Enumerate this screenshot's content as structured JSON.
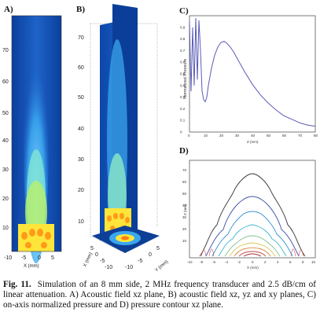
{
  "panels": {
    "a": {
      "label": "A)",
      "y_ticks": [
        "70",
        "60",
        "50",
        "40",
        "30",
        "20",
        "10"
      ],
      "x_ticks": [
        "-10",
        "-5",
        "0",
        "5"
      ],
      "xlabel": "X (mm)"
    },
    "b": {
      "label": "B)",
      "z_ticks": [
        "70",
        "60",
        "50",
        "40",
        "30",
        "20",
        "10"
      ],
      "zlabel": "Z (mm)",
      "x_ticks": [
        "5",
        "0",
        "-5",
        "-10"
      ],
      "y_ticks": [
        "-10",
        "-5",
        "0",
        "5"
      ],
      "xlabel": "X (mm)",
      "ylabel": "Y (mm)"
    },
    "c": {
      "label": "C)",
      "ylabel": "Normalized Pressure",
      "xlabel": "Z (mm)",
      "y_ticks": [
        "0.9",
        "0.8",
        "0.7",
        "0.6",
        "0.5",
        "0.4",
        "0.3",
        "0.2",
        "0.1",
        "0"
      ],
      "x_ticks": [
        "0",
        "10",
        "20",
        "30",
        "40",
        "50",
        "60",
        "70",
        "80"
      ]
    },
    "d": {
      "label": "D)",
      "ylabel": "Z (mm)",
      "xlabel": "X (mm)",
      "y_ticks": [
        "70",
        "60",
        "50",
        "40",
        "30",
        "20",
        "10"
      ],
      "x_ticks": [
        "-10",
        "-8",
        "-6",
        "-4",
        "-2",
        "0",
        "2",
        "4",
        "6",
        "8",
        "10"
      ]
    }
  },
  "caption": {
    "fig": "Fig. 11.",
    "text": "Simulation of an 8 mm side, 2 MHz frequency transducer and 2.5 dB/cm of linear attenuation. A) Acoustic field xz plane, B) acoustic field xz, yz and xy planes, C) on-axis normalized pressure and D) pressure contour xz plane."
  },
  "chart_data": [
    {
      "type": "line",
      "panel": "C",
      "xlabel": "Z (mm)",
      "ylabel": "Normalized Pressure",
      "xlim": [
        0,
        80
      ],
      "ylim": [
        0,
        1
      ],
      "series": [
        {
          "x": [
            0,
            1,
            2,
            3,
            4,
            5,
            6,
            7,
            8,
            9,
            10,
            11,
            12,
            14,
            16,
            18,
            20,
            22,
            24,
            26,
            28,
            30,
            35,
            40,
            45,
            50,
            55,
            60,
            65,
            70,
            75,
            80
          ],
          "y": [
            0.95,
            0.35,
            0.9,
            0.4,
            0.98,
            0.45,
            0.96,
            0.7,
            0.35,
            0.28,
            0.26,
            0.3,
            0.4,
            0.55,
            0.66,
            0.73,
            0.77,
            0.78,
            0.76,
            0.73,
            0.69,
            0.64,
            0.52,
            0.41,
            0.32,
            0.25,
            0.19,
            0.14,
            0.11,
            0.08,
            0.06,
            0.05
          ]
        }
      ]
    }
  ]
}
